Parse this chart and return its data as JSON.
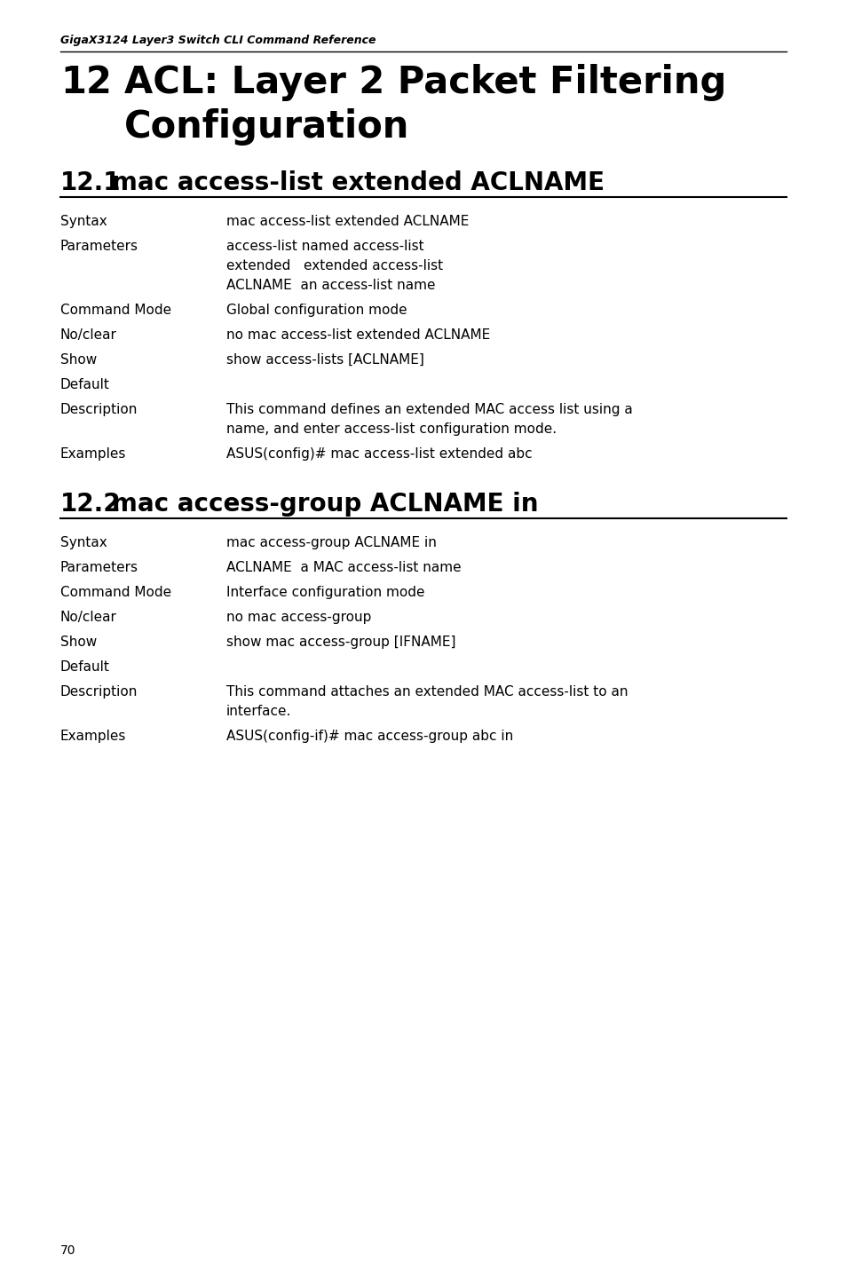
{
  "header_italic": "GigaX3124 Layer3 Switch CLI Command Reference",
  "chapter_num": "12",
  "chapter_title_line1": "ACL: Layer 2 Packet Filtering",
  "chapter_title_line2": "Configuration",
  "section1_num": "12.1",
  "section1_name": "mac access-list extended ACLNAME",
  "section1_rows": [
    {
      "label": "Syntax",
      "values": [
        "mac access-list extended ACLNAME"
      ]
    },
    {
      "label": "Parameters",
      "values": [
        "access-list named access-list",
        "extended   extended access-list",
        "ACLNAME  an access-list name"
      ]
    },
    {
      "label": "Command Mode",
      "values": [
        "Global configuration mode"
      ]
    },
    {
      "label": "No/clear",
      "values": [
        "no mac access-list extended ACLNAME"
      ]
    },
    {
      "label": "Show",
      "values": [
        "show access-lists [ACLNAME]"
      ]
    },
    {
      "label": "Default",
      "values": [
        ""
      ]
    },
    {
      "label": "Description",
      "values": [
        "This command defines an extended MAC access list using a",
        "name, and enter access-list configuration mode."
      ]
    },
    {
      "label": "Examples",
      "values": [
        "ASUS(config)# mac access-list extended abc"
      ]
    }
  ],
  "section2_num": "12.2",
  "section2_name": "mac access-group ACLNAME in",
  "section2_rows": [
    {
      "label": "Syntax",
      "values": [
        "mac access-group ACLNAME in"
      ]
    },
    {
      "label": "Parameters",
      "values": [
        "ACLNAME  a MAC access-list name"
      ]
    },
    {
      "label": "Command Mode",
      "values": [
        "Interface configuration mode"
      ]
    },
    {
      "label": "No/clear",
      "values": [
        "no mac access-group"
      ]
    },
    {
      "label": "Show",
      "values": [
        "show mac access-group [IFNAME]"
      ]
    },
    {
      "label": "Default",
      "values": [
        ""
      ]
    },
    {
      "label": "Description",
      "values": [
        "This command attaches an extended MAC access-list to an",
        "interface."
      ]
    },
    {
      "label": "Examples",
      "values": [
        "ASUS(config-if)# mac access-group abc in"
      ]
    }
  ],
  "page_number": "70",
  "bg_color": "#ffffff",
  "text_color": "#000000"
}
